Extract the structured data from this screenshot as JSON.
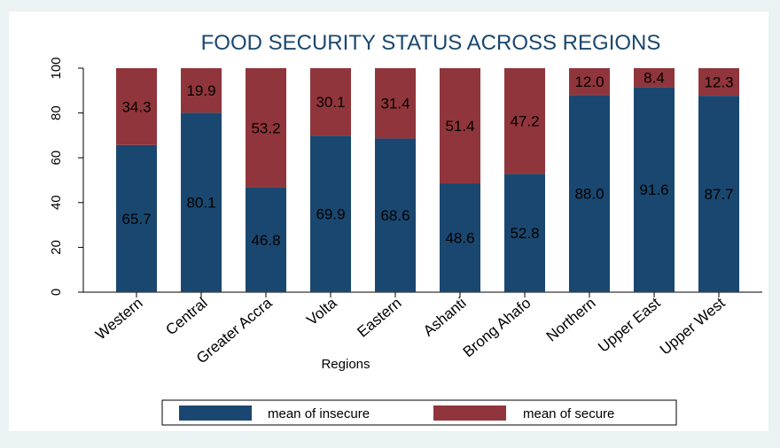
{
  "chart_data": {
    "type": "bar",
    "stacked": true,
    "title": "FOOD SECURITY STATUS ACROSS REGIONS",
    "xlabel": "Regions",
    "ylabel": "",
    "ylim": [
      0,
      100
    ],
    "yticks": [
      0,
      20,
      40,
      60,
      80,
      100
    ],
    "grid": false,
    "legend_position": "bottom",
    "categories": [
      "Western",
      "Central",
      "Greater Accra",
      "Volta",
      "Eastern",
      "Ashanti",
      "Brong Ahafo",
      "Northern",
      "Upper East",
      "Upper West"
    ],
    "series": [
      {
        "name": "mean of insecure",
        "color": "#1a476f",
        "values": [
          65.7,
          80.1,
          46.8,
          69.9,
          68.6,
          48.6,
          52.8,
          88.0,
          91.6,
          87.7
        ],
        "labels": [
          "65.7",
          "80.1",
          "46.8",
          "69.9",
          "68.6",
          "48.6",
          "52.8",
          "88.0",
          "91.6",
          "87.7"
        ]
      },
      {
        "name": "mean of secure",
        "color": "#90353b",
        "values": [
          34.3,
          19.9,
          53.2,
          30.1,
          31.4,
          51.4,
          47.2,
          12.0,
          8.4,
          12.3
        ],
        "labels": [
          "34.3",
          "19.9",
          "53.2",
          "30.1",
          "31.4",
          "51.4",
          "47.2",
          "12.0",
          "8.4",
          "12.3"
        ]
      }
    ]
  },
  "colors": {
    "page_bg": "#eaf2f3",
    "plot_bg": "#ffffff",
    "title": "#1a476f"
  }
}
